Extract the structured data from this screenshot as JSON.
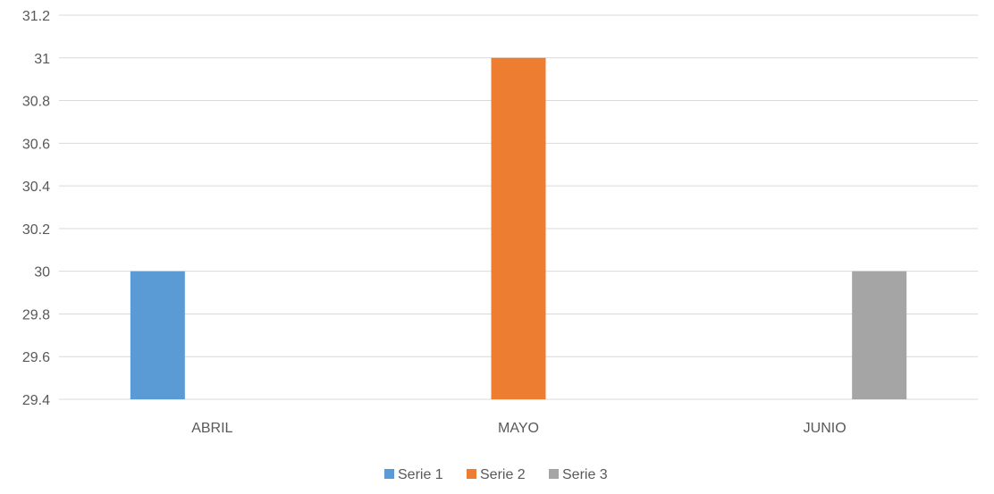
{
  "chart_data": {
    "type": "bar",
    "title": "",
    "xlabel": "",
    "ylabel": "",
    "categories": [
      "ABRIL",
      "MAYO",
      "JUNIO"
    ],
    "series": [
      {
        "name": "Serie 1",
        "color": "#5b9bd5",
        "values": [
          30,
          null,
          null
        ]
      },
      {
        "name": "Serie 2",
        "color": "#ed7d31",
        "values": [
          null,
          31,
          null
        ]
      },
      {
        "name": "Serie 3",
        "color": "#a5a5a5",
        "values": [
          null,
          null,
          30
        ]
      }
    ],
    "ylim": [
      29.4,
      31.2
    ],
    "yticks": [
      "29.4",
      "29.6",
      "29.8",
      "30",
      "30.2",
      "30.4",
      "30.6",
      "30.8",
      "31",
      "31.2"
    ],
    "grid": true,
    "legend_position": "bottom"
  }
}
